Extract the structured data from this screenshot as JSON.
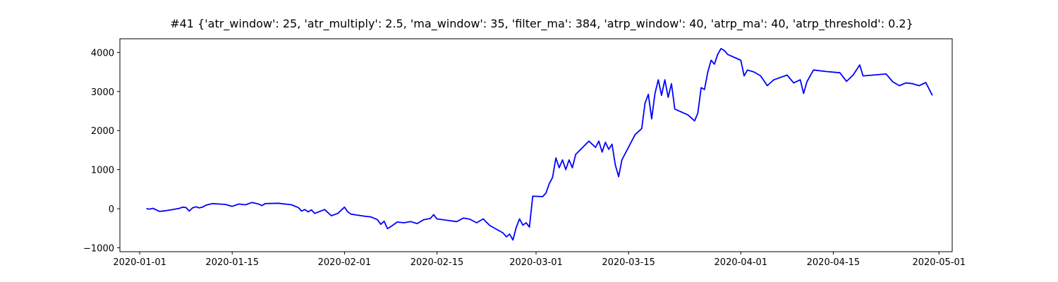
{
  "chart_data": {
    "type": "line",
    "title": "#41 {'atr_window': 25, 'atr_multiply': 2.5, 'ma_window': 35, 'filter_ma': 384, 'atrp_window': 40, 'atrp_ma': 40, 'atrp_threshold': 0.2}",
    "xlabel": "",
    "ylabel": "",
    "x_range": [
      "2019-12-29",
      "2020-05-03"
    ],
    "ylim": [
      -1100,
      4350
    ],
    "x_ticks": [
      "2020-01-01",
      "2020-01-15",
      "2020-02-01",
      "2020-02-15",
      "2020-03-01",
      "2020-03-15",
      "2020-04-01",
      "2020-04-15",
      "2020-05-01"
    ],
    "y_ticks": [
      -1000,
      0,
      1000,
      2000,
      3000,
      4000
    ],
    "grid": false,
    "series": [
      {
        "color": "#0000ff",
        "points": [
          [
            "2020-01-02",
            0
          ],
          [
            "2020-01-02 12:00",
            -10
          ],
          [
            "2020-01-03",
            10
          ],
          [
            "2020-01-03 12:00",
            -30
          ],
          [
            "2020-01-04",
            -70
          ],
          [
            "2020-01-05",
            -50
          ],
          [
            "2020-01-06",
            -20
          ],
          [
            "2020-01-07",
            10
          ],
          [
            "2020-01-07 12:00",
            40
          ],
          [
            "2020-01-08",
            30
          ],
          [
            "2020-01-08 12:00",
            -60
          ],
          [
            "2020-01-09",
            20
          ],
          [
            "2020-01-09 12:00",
            50
          ],
          [
            "2020-01-10",
            20
          ],
          [
            "2020-01-10 12:00",
            40
          ],
          [
            "2020-01-11",
            90
          ],
          [
            "2020-01-12",
            130
          ],
          [
            "2020-01-13",
            120
          ],
          [
            "2020-01-14",
            110
          ],
          [
            "2020-01-15",
            60
          ],
          [
            "2020-01-16",
            120
          ],
          [
            "2020-01-17",
            100
          ],
          [
            "2020-01-18",
            160
          ],
          [
            "2020-01-19",
            120
          ],
          [
            "2020-01-19 12:00",
            80
          ],
          [
            "2020-01-20",
            130
          ],
          [
            "2020-01-22",
            140
          ],
          [
            "2020-01-24",
            100
          ],
          [
            "2020-01-25",
            30
          ],
          [
            "2020-01-25 12:00",
            -60
          ],
          [
            "2020-01-26",
            -20
          ],
          [
            "2020-01-26 12:00",
            -80
          ],
          [
            "2020-01-27",
            -30
          ],
          [
            "2020-01-27 12:00",
            -120
          ],
          [
            "2020-01-29",
            -20
          ],
          [
            "2020-01-30",
            -180
          ],
          [
            "2020-01-31",
            -120
          ],
          [
            "2020-02-01",
            40
          ],
          [
            "2020-02-01 12:00",
            -80
          ],
          [
            "2020-02-02",
            -140
          ],
          [
            "2020-02-04",
            -190
          ],
          [
            "2020-02-05",
            -210
          ],
          [
            "2020-02-06",
            -280
          ],
          [
            "2020-02-06 12:00",
            -400
          ],
          [
            "2020-02-07",
            -320
          ],
          [
            "2020-02-07 12:00",
            -510
          ],
          [
            "2020-02-08",
            -460
          ],
          [
            "2020-02-09",
            -340
          ],
          [
            "2020-02-10",
            -360
          ],
          [
            "2020-02-11",
            -330
          ],
          [
            "2020-02-12",
            -380
          ],
          [
            "2020-02-13",
            -280
          ],
          [
            "2020-02-14",
            -250
          ],
          [
            "2020-02-14 12:00",
            -150
          ],
          [
            "2020-02-15",
            -260
          ],
          [
            "2020-02-18",
            -330
          ],
          [
            "2020-02-19",
            -240
          ],
          [
            "2020-02-20",
            -270
          ],
          [
            "2020-02-21",
            -360
          ],
          [
            "2020-02-22",
            -260
          ],
          [
            "2020-02-23",
            -430
          ],
          [
            "2020-02-25",
            -620
          ],
          [
            "2020-02-25 12:00",
            -720
          ],
          [
            "2020-02-26",
            -650
          ],
          [
            "2020-02-26 12:00",
            -800
          ],
          [
            "2020-02-27",
            -480
          ],
          [
            "2020-02-27 12:00",
            -260
          ],
          [
            "2020-02-28",
            -420
          ],
          [
            "2020-02-28 12:00",
            -360
          ],
          [
            "2020-02-29",
            -470
          ],
          [
            "2020-02-29 12:00",
            320
          ],
          [
            "2020-03-02",
            310
          ],
          [
            "2020-03-02 12:00",
            400
          ],
          [
            "2020-03-03",
            640
          ],
          [
            "2020-03-03 12:00",
            800
          ],
          [
            "2020-03-04",
            1300
          ],
          [
            "2020-03-04 12:00",
            1050
          ],
          [
            "2020-03-05",
            1250
          ],
          [
            "2020-03-05 12:00",
            1000
          ],
          [
            "2020-03-06",
            1250
          ],
          [
            "2020-03-06 12:00",
            1050
          ],
          [
            "2020-03-07",
            1390
          ],
          [
            "2020-03-09",
            1730
          ],
          [
            "2020-03-10",
            1570
          ],
          [
            "2020-03-10 12:00",
            1730
          ],
          [
            "2020-03-11",
            1450
          ],
          [
            "2020-03-11 12:00",
            1700
          ],
          [
            "2020-03-12",
            1520
          ],
          [
            "2020-03-12 12:00",
            1650
          ],
          [
            "2020-03-13",
            1120
          ],
          [
            "2020-03-13 12:00",
            820
          ],
          [
            "2020-03-14",
            1250
          ],
          [
            "2020-03-16",
            1900
          ],
          [
            "2020-03-17",
            2050
          ],
          [
            "2020-03-17 12:00",
            2700
          ],
          [
            "2020-03-18",
            2930
          ],
          [
            "2020-03-18 12:00",
            2300
          ],
          [
            "2020-03-19",
            2950
          ],
          [
            "2020-03-19 12:00",
            3300
          ],
          [
            "2020-03-20",
            2900
          ],
          [
            "2020-03-20 12:00",
            3300
          ],
          [
            "2020-03-21",
            2850
          ],
          [
            "2020-03-21 12:00",
            3200
          ],
          [
            "2020-03-22",
            2550
          ],
          [
            "2020-03-24",
            2400
          ],
          [
            "2020-03-25",
            2250
          ],
          [
            "2020-03-25 12:00",
            2450
          ],
          [
            "2020-03-26",
            3100
          ],
          [
            "2020-03-26 12:00",
            3050
          ],
          [
            "2020-03-27",
            3500
          ],
          [
            "2020-03-27 12:00",
            3800
          ],
          [
            "2020-03-28",
            3700
          ],
          [
            "2020-03-28 12:00",
            3950
          ],
          [
            "2020-03-29",
            4100
          ],
          [
            "2020-03-29 12:00",
            4050
          ],
          [
            "2020-03-30",
            3950
          ],
          [
            "2020-04-01",
            3800
          ],
          [
            "2020-04-01 12:00",
            3400
          ],
          [
            "2020-04-02",
            3550
          ],
          [
            "2020-04-03",
            3500
          ],
          [
            "2020-04-04",
            3400
          ],
          [
            "2020-04-05",
            3150
          ],
          [
            "2020-04-06",
            3300
          ],
          [
            "2020-04-08",
            3420
          ],
          [
            "2020-04-09",
            3220
          ],
          [
            "2020-04-10",
            3300
          ],
          [
            "2020-04-10 12:00",
            2950
          ],
          [
            "2020-04-11",
            3250
          ],
          [
            "2020-04-12",
            3550
          ],
          [
            "2020-04-14",
            3510
          ],
          [
            "2020-04-16",
            3480
          ],
          [
            "2020-04-17",
            3260
          ],
          [
            "2020-04-18",
            3420
          ],
          [
            "2020-04-19",
            3680
          ],
          [
            "2020-04-19 12:00",
            3400
          ],
          [
            "2020-04-21",
            3420
          ],
          [
            "2020-04-23",
            3450
          ],
          [
            "2020-04-24",
            3250
          ],
          [
            "2020-04-25",
            3150
          ],
          [
            "2020-04-26",
            3220
          ],
          [
            "2020-04-27",
            3200
          ],
          [
            "2020-04-28",
            3150
          ],
          [
            "2020-04-29",
            3230
          ],
          [
            "2020-04-30",
            2900
          ]
        ]
      }
    ]
  }
}
